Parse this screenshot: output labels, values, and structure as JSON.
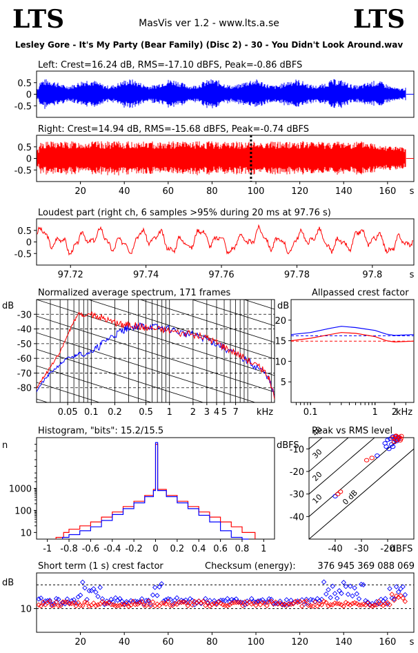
{
  "header": {
    "logo_left": "LTS",
    "logo_right": "LTS",
    "app_title": "MasVis ver 1.2 - www.lts.a.se",
    "file_title": "Lesley Gore - It's My Party (Bear Family) (Disc 2) - 30 - You Didn't Look Around.wav"
  },
  "colors": {
    "left": "#0000ff",
    "right": "#ff0000",
    "background": "#ffffff"
  },
  "chart_data": [
    {
      "id": "left-waveform",
      "type": "area",
      "title": "Left: Crest=16.24 dB, RMS=-17.10 dBFS, Peak=-0.86 dBFS",
      "series": [
        {
          "name": "Left",
          "color": "#0000ff",
          "peak": 0.906,
          "rms": 0.139
        }
      ],
      "xlim": [
        0,
        172
      ],
      "ylim": [
        -1,
        1
      ],
      "yticks": [
        0.5,
        0,
        -0.5
      ],
      "ytick_labels": [
        "0.5",
        "0",
        "-0.5"
      ]
    },
    {
      "id": "right-waveform",
      "type": "area",
      "title": "Right: Crest=14.94 dB, RMS=-15.68 dBFS, Peak=-0.74 dBFS",
      "series": [
        {
          "name": "Right",
          "color": "#ff0000",
          "peak": 0.918,
          "rms": 0.164
        }
      ],
      "marker_x": 97.76,
      "xlim": [
        0,
        172
      ],
      "ylim": [
        -1,
        1
      ],
      "yticks": [
        0.5,
        0,
        -0.5
      ],
      "ytick_labels": [
        "0.5",
        "0",
        "-0.5"
      ],
      "xticks": [
        20,
        40,
        60,
        80,
        100,
        120,
        140,
        160
      ],
      "xtick_labels": [
        "20",
        "40",
        "60",
        "80",
        "100",
        "120",
        "140",
        "160"
      ],
      "x_unit": "s"
    },
    {
      "id": "loudest-part",
      "type": "line",
      "title": "Loudest part (right ch, 6 samples >95% during 20 ms at 97.76 s)",
      "series": [
        {
          "name": "Right",
          "color": "#ff0000"
        }
      ],
      "xlim": [
        97.711,
        97.811
      ],
      "ylim": [
        -1,
        1
      ],
      "yticks": [
        0.5,
        0,
        -0.5
      ],
      "ytick_labels": [
        "0.5",
        "0",
        "-0.5"
      ],
      "xticks": [
        97.72,
        97.74,
        97.76,
        97.78,
        97.8
      ],
      "xtick_labels": [
        "97.72",
        "97.74",
        "97.76",
        "97.78",
        "97.8"
      ],
      "x_unit": "s"
    },
    {
      "id": "spectrum",
      "type": "line",
      "title": "Normalized average spectrum, 171 frames",
      "ylabel": "dB",
      "xscale": "log",
      "xlim": [
        0.02,
        22
      ],
      "ylim": [
        -90,
        -20
      ],
      "yticks": [
        -30,
        -40,
        -50,
        -60,
        -70,
        -80
      ],
      "ytick_labels": [
        "-30",
        "-40",
        "-50",
        "-60",
        "-70",
        "-80"
      ],
      "xticks": [
        0.05,
        0.1,
        0.2,
        0.5,
        1,
        2,
        3,
        4,
        5,
        7
      ],
      "xtick_labels": [
        "0.05",
        "0.1",
        "0.2",
        "0.5",
        "1",
        "2",
        "3",
        "4",
        "5",
        "7"
      ],
      "x_unit": "kHz",
      "series": [
        {
          "name": "Left",
          "color": "#0000ff",
          "x": [
            0.02,
            0.025,
            0.03,
            0.04,
            0.05,
            0.06,
            0.07,
            0.08,
            0.1,
            0.12,
            0.15,
            0.2,
            0.25,
            0.3,
            0.4,
            0.5,
            0.7,
            1,
            1.5,
            2,
            3,
            4,
            5,
            7,
            10,
            14,
            18,
            22
          ],
          "y": [
            -82,
            -75,
            -70,
            -64,
            -60,
            -59,
            -56,
            -58,
            -55,
            -53,
            -48,
            -44,
            -41,
            -39,
            -38,
            -38,
            -39,
            -40,
            -43,
            -44,
            -47,
            -50,
            -53,
            -57,
            -62,
            -67,
            -72,
            -86
          ]
        },
        {
          "name": "Right",
          "color": "#ff0000",
          "x": [
            0.02,
            0.025,
            0.03,
            0.04,
            0.05,
            0.06,
            0.07,
            0.08,
            0.1,
            0.12,
            0.15,
            0.2,
            0.25,
            0.3,
            0.4,
            0.5,
            0.7,
            1,
            1.5,
            2,
            3,
            4,
            5,
            7,
            10,
            14,
            18,
            22
          ],
          "y": [
            -80,
            -72,
            -66,
            -56,
            -44,
            -35,
            -29,
            -31,
            -30,
            -31,
            -33,
            -36,
            -37,
            -37,
            -38,
            -39,
            -40,
            -41,
            -43,
            -44,
            -46,
            -49,
            -52,
            -56,
            -61,
            -66,
            -71,
            -88
          ]
        }
      ]
    },
    {
      "id": "allpassed-crest",
      "type": "line",
      "title": "Allpassed crest factor",
      "ylabel": "dB",
      "xscale": "log",
      "xlim": [
        0.05,
        4
      ],
      "ylim": [
        0,
        25
      ],
      "yticks": [
        20,
        15,
        10,
        5
      ],
      "ytick_labels": [
        "20",
        "15",
        "10",
        "5"
      ],
      "xticks": [
        0.1,
        1,
        2
      ],
      "xtick_labels": [
        "0.1",
        "1",
        "2"
      ],
      "x_unit": "kHz",
      "reference_lines": [
        {
          "color": "#0000ff",
          "value": 16.2
        },
        {
          "color": "#ff0000",
          "value": 14.9
        }
      ],
      "series": [
        {
          "name": "Left",
          "color": "#0000ff",
          "x": [
            0.05,
            0.1,
            0.2,
            0.3,
            0.5,
            1,
            1.5,
            2,
            4
          ],
          "y": [
            16.5,
            17.0,
            18.0,
            18.5,
            18.2,
            17.5,
            16.6,
            16.3,
            16.5
          ]
        },
        {
          "name": "Right",
          "color": "#ff0000",
          "x": [
            0.05,
            0.1,
            0.2,
            0.3,
            0.5,
            1,
            1.5,
            2,
            4
          ],
          "y": [
            15.0,
            15.6,
            16.5,
            17.0,
            16.8,
            16.0,
            15.0,
            14.7,
            14.9
          ]
        }
      ]
    },
    {
      "id": "histogram",
      "type": "line",
      "title": "Histogram, \"bits\": 15.2/15.5",
      "ylabel": "n",
      "yscale": "log",
      "xlim": [
        -1.1,
        1.1
      ],
      "ylim": [
        5,
        200000
      ],
      "yticks": [
        1000,
        100,
        10
      ],
      "ytick_labels": [
        "1000",
        "100",
        "10"
      ],
      "xticks": [
        -1,
        -0.8,
        -0.6,
        -0.4,
        -0.2,
        0,
        0.2,
        0.4,
        0.6,
        0.8,
        1
      ],
      "xtick_labels": [
        "-1",
        "-0.8",
        "-0.6",
        "-0.4",
        "-0.2",
        "0",
        "0.2",
        "0.4",
        "0.6",
        "0.8",
        "1"
      ],
      "series": [
        {
          "name": "Left",
          "color": "#0000ff",
          "x": [
            -0.86,
            -0.8,
            -0.7,
            -0.6,
            -0.5,
            -0.4,
            -0.3,
            -0.2,
            -0.1,
            -0.02,
            0,
            0.02,
            0.1,
            0.2,
            0.3,
            0.4,
            0.5,
            0.6,
            0.7,
            0.8,
            0.86
          ],
          "y": [
            6,
            8,
            12,
            18,
            35,
            65,
            120,
            220,
            420,
            800,
            120000,
            800,
            420,
            220,
            120,
            60,
            30,
            12,
            6,
            5,
            5
          ]
        },
        {
          "name": "Right",
          "color": "#ff0000",
          "x": [
            -0.92,
            -0.85,
            -0.8,
            -0.7,
            -0.6,
            -0.5,
            -0.4,
            -0.3,
            -0.2,
            -0.1,
            -0.02,
            0,
            0.02,
            0.1,
            0.2,
            0.3,
            0.4,
            0.5,
            0.6,
            0.7,
            0.8,
            0.92
          ],
          "y": [
            6,
            10,
            14,
            20,
            30,
            50,
            85,
            150,
            260,
            480,
            900,
            100000,
            900,
            480,
            260,
            150,
            85,
            50,
            30,
            18,
            10,
            6
          ]
        }
      ]
    },
    {
      "id": "peak-vs-rms",
      "type": "scatter",
      "title": "Peak vs RMS level",
      "ylabel": "dBFS",
      "xlabel": "dBFS",
      "xlim": [
        -50,
        -10
      ],
      "ylim": [
        -50,
        -5
      ],
      "yticks": [
        -10,
        -20,
        -30,
        -40
      ],
      "ytick_labels": [
        "-10",
        "-20",
        "-30",
        "-40"
      ],
      "xticks": [
        -40,
        -30,
        -20
      ],
      "xtick_labels": [
        "-40",
        "-30",
        "-20"
      ],
      "crest_lines": [
        0,
        10,
        20,
        30,
        40
      ],
      "crest_labels": [
        "0 dB",
        "10",
        "20",
        "30",
        "40"
      ],
      "series": [
        {
          "name": "Left",
          "color": "#0000ff",
          "x": [
            -20,
            -19,
            -18.5,
            -18,
            -17.5,
            -17,
            -16.5,
            -16,
            -20.5,
            -19.5,
            -18,
            -17,
            -16.5,
            -15.8,
            -21,
            -24,
            -40
          ],
          "y": [
            -6,
            -5.5,
            -8,
            -9,
            -7,
            -6,
            -5,
            -5.8,
            -9,
            -10,
            -4.5,
            -4.3,
            -6.5,
            -5,
            -7.5,
            -13,
            -31
          ]
        },
        {
          "name": "Right",
          "color": "#ff0000",
          "x": [
            -18,
            -17,
            -16.5,
            -16,
            -15.5,
            -15,
            -14.8,
            -17.5,
            -16.8,
            -15.2,
            -28,
            -26,
            -39,
            -38
          ],
          "y": [
            -5,
            -4.5,
            -6,
            -5,
            -4.8,
            -5.5,
            -4.3,
            -6.8,
            -4.2,
            -6.2,
            -15,
            -14,
            -30,
            -29
          ]
        }
      ]
    },
    {
      "id": "short-term-crest",
      "type": "scatter",
      "title": "Short term (1 s) crest factor",
      "ylabel": "dB",
      "checksum_label": "Checksum (energy):",
      "checksum_value": "376 945 369 088 069",
      "xlim": [
        0,
        172
      ],
      "ylim": [
        0,
        25
      ],
      "yticks": [
        10
      ],
      "ytick_labels": [
        "10"
      ],
      "reference_lines": [
        10,
        20
      ],
      "xticks": [
        20,
        40,
        60,
        80,
        100,
        120,
        140,
        160
      ],
      "xtick_labels": [
        "20",
        "40",
        "60",
        "80",
        "100",
        "120",
        "140",
        "160"
      ],
      "x_unit": "s",
      "series": [
        {
          "name": "Left",
          "color": "#0000ff",
          "values": []
        },
        {
          "name": "Right",
          "color": "#ff0000",
          "values": []
        }
      ]
    }
  ]
}
